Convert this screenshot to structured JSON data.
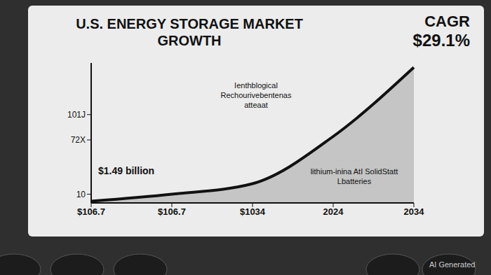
{
  "chart_data": {
    "type": "area",
    "title": "U.S. ENERGY STORAGE MARKET GROWTH",
    "categories": [
      "$106.7",
      "$106.7",
      "$1034",
      "2024",
      "2034"
    ],
    "values": [
      2,
      10,
      22,
      76,
      155
    ],
    "color": "#111111",
    "ylim": [
      0,
      160
    ],
    "yticks": [
      10,
      {
        "value": 72,
        "label": "72X"
      },
      {
        "value": 101,
        "label": "101J"
      }
    ],
    "grid": false,
    "annotations": [
      "CAGR",
      "$29.1%",
      "$1.49 billion",
      "Ienthblogical Rechourivebentenas atteaat",
      "lithium-inina AtI SolidStatt Lbatteries",
      "AI Generated"
    ]
  }
}
